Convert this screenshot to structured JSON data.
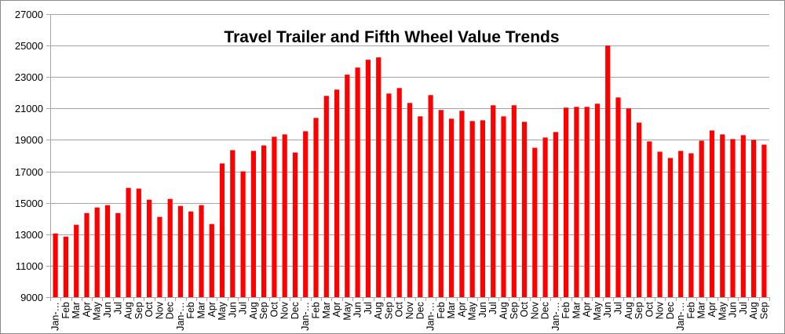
{
  "chart_data": {
    "type": "bar",
    "title": "Travel Trailer and Fifth Wheel Value Trends",
    "xlabel": "",
    "ylabel": "",
    "ylim": [
      9000,
      27000
    ],
    "yticks": [
      9000,
      11000,
      13000,
      15000,
      17000,
      19000,
      21000,
      23000,
      25000,
      27000
    ],
    "grid": true,
    "legend": null,
    "bar_color": "#FF0000",
    "categories": [
      "Jan-…",
      "Feb",
      "Mar",
      "Apr",
      "May",
      "Jun",
      "Jul",
      "Aug",
      "Sep",
      "Oct",
      "Nov",
      "Dec",
      "Jan-…",
      "Feb",
      "Mar",
      "Apr",
      "May",
      "Jun",
      "Jul",
      "Aug",
      "Sep",
      "Oct",
      "Nov",
      "Dec",
      "Jan-…",
      "Feb",
      "Mar",
      "Apr",
      "May",
      "Jun",
      "Jul",
      "Aug",
      "Sep",
      "Oct",
      "Nov",
      "Dec",
      "Jan-…",
      "Feb",
      "Mar",
      "Apr",
      "May",
      "Jun",
      "Jul",
      "Aug",
      "Sep",
      "Oct",
      "Nov",
      "Dec",
      "Jan-…",
      "Feb",
      "Mar",
      "Apr",
      "May",
      "Jun",
      "Jul",
      "Aug",
      "Sep",
      "Oct",
      "Nov",
      "Dec",
      "Jan-…",
      "Feb",
      "Mar",
      "Apr",
      "May",
      "Jun",
      "Jul",
      "Aug",
      "Sep"
    ],
    "values": [
      13050,
      12850,
      13600,
      14350,
      14700,
      14850,
      14350,
      15950,
      15900,
      15200,
      14100,
      15250,
      14800,
      14450,
      14850,
      13650,
      17500,
      18350,
      17000,
      18300,
      18650,
      19200,
      19350,
      18200,
      19550,
      20400,
      21800,
      22200,
      23150,
      23600,
      24100,
      24250,
      21950,
      22300,
      21350,
      20500,
      21850,
      20900,
      20350,
      20850,
      20200,
      20250,
      21200,
      20500,
      21200,
      20150,
      18500,
      19150,
      19500,
      21050,
      21100,
      21100,
      21300,
      25000,
      21700,
      21000,
      20100,
      18900,
      18250,
      17850,
      18300,
      18150,
      18950,
      19600,
      19350,
      19050,
      19300,
      19000,
      18700
    ]
  }
}
